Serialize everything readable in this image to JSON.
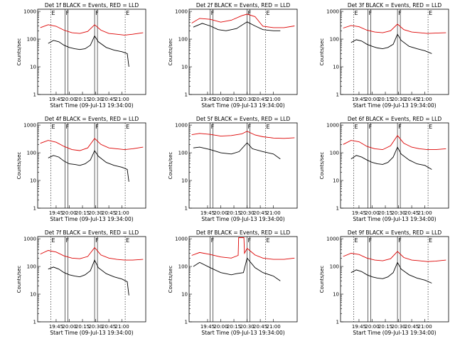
{
  "colors": {
    "events": "#000000",
    "lld": "#dd0000",
    "axes": "#000000",
    "background": "#ffffff"
  },
  "axis": {
    "ylabel": "Counts/sec",
    "xlabel": "Start Time (09-Jul-13 19:34:00)",
    "y_ticks": [
      "1",
      "10",
      "100",
      "1000"
    ],
    "y_range": [
      1,
      1200
    ],
    "y_scale": "log",
    "x_range_min": [
      19.4,
      21.45
    ],
    "x_ticks_standard": [
      "19:45",
      "20:00",
      "20:15",
      "20:30",
      "20:45",
      "21:00"
    ],
    "x_ticks_shifted": [
      "19:45",
      "20:00",
      "20:15",
      "20:30",
      "20:45",
      "21:00"
    ],
    "x_tick_hours_standard": [
      19.75,
      20.0,
      20.25,
      20.5,
      20.75,
      21.0
    ],
    "x_tick_hours_shifted": [
      19.75,
      20.0,
      20.25,
      20.5,
      20.75,
      21.0
    ]
  },
  "chart_data": [
    {
      "title": "Det 1f BLACK = Events, RED = LLD",
      "type": "line",
      "markers": [
        {
          "hour": 19.65,
          "label": "E"
        },
        {
          "hour": 19.92,
          "label": "F"
        },
        {
          "hour": 20.48,
          "label": "F"
        },
        {
          "hour": 21.06,
          "label": "E"
        }
      ],
      "series": [
        {
          "name": "Events",
          "x": [
            19.6,
            19.7,
            19.8,
            19.9,
            20.0,
            20.1,
            20.2,
            20.3,
            20.4,
            20.48,
            20.55,
            20.7,
            20.85,
            21.0,
            21.1,
            21.13
          ],
          "y": [
            70,
            90,
            80,
            60,
            50,
            45,
            42,
            45,
            60,
            130,
            80,
            50,
            40,
            35,
            30,
            10
          ]
        },
        {
          "name": "LLD",
          "x": [
            19.45,
            19.6,
            19.75,
            19.9,
            20.05,
            20.2,
            20.35,
            20.48,
            20.6,
            20.75,
            20.9,
            21.05,
            21.2,
            21.4
          ],
          "y": [
            260,
            330,
            290,
            210,
            170,
            160,
            190,
            330,
            210,
            160,
            150,
            140,
            150,
            170
          ]
        }
      ]
    },
    {
      "title": "Det 2f BLACK = Events, RED = LLD",
      "type": "line",
      "markers": [
        {
          "hour": 19.8,
          "label": "F"
        },
        {
          "hour": 20.5,
          "label": "F"
        },
        {
          "hour": 20.85,
          "label": "E"
        }
      ],
      "series": [
        {
          "name": "Events",
          "x": [
            19.48,
            19.65,
            19.8,
            19.95,
            20.1,
            20.3,
            20.5,
            20.65,
            20.8,
            21.0,
            21.13
          ],
          "y": [
            270,
            370,
            300,
            220,
            200,
            240,
            420,
            300,
            220,
            200,
            200
          ]
        },
        {
          "name": "LLD",
          "x": [
            19.45,
            19.6,
            19.8,
            20.0,
            20.2,
            20.4,
            20.5,
            20.65,
            20.8,
            21.0,
            21.2,
            21.4
          ],
          "y": [
            380,
            560,
            520,
            410,
            480,
            700,
            800,
            650,
            290,
            260,
            260,
            300
          ]
        }
      ]
    },
    {
      "title": "Det 3f BLACK = Events, RED = LLD",
      "type": "line",
      "markers": [
        {
          "hour": 19.65,
          "label": "E"
        },
        {
          "hour": 19.92,
          "label": "F"
        },
        {
          "hour": 20.48,
          "label": "F"
        },
        {
          "hour": 21.06,
          "label": "E"
        }
      ],
      "series": [
        {
          "name": "Events",
          "x": [
            19.6,
            19.7,
            19.8,
            19.9,
            20.0,
            20.1,
            20.2,
            20.3,
            20.4,
            20.48,
            20.55,
            20.7,
            20.85,
            21.0,
            21.13
          ],
          "y": [
            75,
            95,
            85,
            65,
            55,
            48,
            45,
            50,
            65,
            150,
            90,
            55,
            45,
            38,
            30
          ]
        },
        {
          "name": "LLD",
          "x": [
            19.45,
            19.6,
            19.75,
            19.9,
            20.05,
            20.2,
            20.35,
            20.48,
            20.6,
            20.75,
            20.9,
            21.05,
            21.2,
            21.4
          ],
          "y": [
            250,
            310,
            280,
            210,
            180,
            170,
            200,
            350,
            220,
            180,
            170,
            160,
            165,
            170
          ]
        }
      ]
    },
    {
      "title": "Det 4f BLACK = Events, RED = LLD",
      "type": "line",
      "markers": [
        {
          "hour": 19.65,
          "label": "E"
        },
        {
          "hour": 19.92,
          "label": "F"
        },
        {
          "hour": 20.48,
          "label": "F"
        },
        {
          "hour": 21.06,
          "label": "E"
        }
      ],
      "series": [
        {
          "name": "Events",
          "x": [
            19.6,
            19.7,
            19.8,
            19.9,
            20.0,
            20.1,
            20.2,
            20.3,
            20.4,
            20.48,
            20.55,
            20.7,
            20.85,
            21.0,
            21.1,
            21.13
          ],
          "y": [
            65,
            80,
            70,
            50,
            40,
            38,
            35,
            40,
            55,
            120,
            75,
            45,
            35,
            30,
            25,
            9
          ]
        },
        {
          "name": "LLD",
          "x": [
            19.45,
            19.6,
            19.75,
            19.9,
            20.05,
            20.2,
            20.35,
            20.48,
            20.6,
            20.75,
            20.9,
            21.05,
            21.2,
            21.4
          ],
          "y": [
            220,
            280,
            240,
            170,
            130,
            120,
            150,
            330,
            200,
            150,
            140,
            130,
            140,
            160
          ]
        }
      ]
    },
    {
      "title": "Det 5f BLACK = Events, RED = LLD",
      "type": "line",
      "markers": [
        {
          "hour": 19.8,
          "label": "F"
        },
        {
          "hour": 20.5,
          "label": "F"
        },
        {
          "hour": 20.85,
          "label": "E"
        }
      ],
      "series": [
        {
          "name": "Events",
          "x": [
            19.48,
            19.6,
            19.8,
            20.0,
            20.2,
            20.35,
            20.5,
            20.6,
            20.8,
            21.0,
            21.13
          ],
          "y": [
            150,
            160,
            130,
            100,
            90,
            110,
            230,
            140,
            110,
            90,
            60
          ]
        },
        {
          "name": "LLD",
          "x": [
            19.45,
            19.6,
            19.8,
            20.0,
            20.2,
            20.4,
            20.5,
            20.65,
            20.8,
            21.0,
            21.2,
            21.4
          ],
          "y": [
            450,
            500,
            460,
            400,
            420,
            480,
            600,
            440,
            380,
            340,
            330,
            350
          ]
        }
      ]
    },
    {
      "title": "Det 6f BLACK = Events, RED = LLD",
      "type": "line",
      "markers": [
        {
          "hour": 19.65,
          "label": "E"
        },
        {
          "hour": 19.92,
          "label": "F"
        },
        {
          "hour": 20.48,
          "label": "F"
        },
        {
          "hour": 21.06,
          "label": "E"
        }
      ],
      "series": [
        {
          "name": "Events",
          "x": [
            19.6,
            19.7,
            19.8,
            19.9,
            20.0,
            20.1,
            20.2,
            20.3,
            20.4,
            20.48,
            20.55,
            20.7,
            20.85,
            21.0,
            21.13
          ],
          "y": [
            60,
            80,
            70,
            55,
            45,
            40,
            38,
            45,
            70,
            160,
            90,
            55,
            40,
            35,
            25
          ]
        },
        {
          "name": "LLD",
          "x": [
            19.45,
            19.6,
            19.75,
            19.9,
            20.05,
            20.2,
            20.35,
            20.48,
            20.6,
            20.75,
            20.9,
            21.05,
            21.2,
            21.4
          ],
          "y": [
            200,
            280,
            250,
            170,
            140,
            130,
            180,
            420,
            220,
            160,
            140,
            130,
            130,
            140
          ]
        }
      ]
    },
    {
      "title": "Det 7f BLACK = Events, RED = LLD",
      "type": "line",
      "markers": [
        {
          "hour": 19.65,
          "label": "E"
        },
        {
          "hour": 19.92,
          "label": "F"
        },
        {
          "hour": 20.48,
          "label": "F"
        },
        {
          "hour": 21.06,
          "label": "E"
        }
      ],
      "series": [
        {
          "name": "Events",
          "x": [
            19.6,
            19.7,
            19.8,
            19.9,
            20.0,
            20.1,
            20.2,
            20.3,
            20.4,
            20.48,
            20.55,
            20.7,
            20.85,
            21.0,
            21.1,
            21.13
          ],
          "y": [
            80,
            95,
            80,
            60,
            50,
            45,
            42,
            50,
            70,
            170,
            90,
            55,
            42,
            35,
            28,
            9
          ]
        },
        {
          "name": "LLD",
          "x": [
            19.45,
            19.6,
            19.75,
            19.9,
            20.05,
            20.2,
            20.35,
            20.48,
            20.6,
            20.75,
            20.9,
            21.05,
            21.2,
            21.4
          ],
          "y": [
            280,
            380,
            330,
            240,
            200,
            190,
            230,
            480,
            260,
            200,
            180,
            170,
            170,
            180
          ]
        }
      ]
    },
    {
      "title": "Det 8f BLACK = Events, RED = LLD",
      "type": "line",
      "markers": [
        {
          "hour": 19.8,
          "label": "F"
        },
        {
          "hour": 20.5,
          "label": "F"
        },
        {
          "hour": 20.85,
          "label": "E"
        }
      ],
      "series": [
        {
          "name": "Events",
          "x": [
            19.48,
            19.6,
            19.8,
            20.0,
            20.2,
            20.3,
            20.43,
            20.5,
            20.65,
            20.8,
            21.0,
            21.13
          ],
          "y": [
            100,
            140,
            90,
            60,
            50,
            55,
            60,
            200,
            90,
            60,
            45,
            30
          ]
        },
        {
          "name": "LLD",
          "x": [
            19.45,
            19.6,
            19.8,
            20.0,
            20.2,
            20.33,
            20.34,
            20.44,
            20.45,
            20.5,
            20.65,
            20.8,
            21.0,
            21.2,
            21.4
          ],
          "y": [
            250,
            320,
            270,
            220,
            200,
            250,
            1100,
            1100,
            300,
            450,
            260,
            200,
            180,
            180,
            200
          ]
        }
      ]
    },
    {
      "title": "Det 9f BLACK = Events, RED = LLD",
      "type": "line",
      "markers": [
        {
          "hour": 19.65,
          "label": "E"
        },
        {
          "hour": 19.92,
          "label": "F"
        },
        {
          "hour": 20.48,
          "label": "F"
        },
        {
          "hour": 21.06,
          "label": "E"
        }
      ],
      "series": [
        {
          "name": "Events",
          "x": [
            19.6,
            19.7,
            19.8,
            19.9,
            20.0,
            20.1,
            20.2,
            20.3,
            20.4,
            20.48,
            20.55,
            20.7,
            20.85,
            21.0,
            21.13
          ],
          "y": [
            60,
            75,
            65,
            50,
            42,
            38,
            36,
            42,
            60,
            140,
            80,
            50,
            38,
            32,
            25
          ]
        },
        {
          "name": "LLD",
          "x": [
            19.45,
            19.6,
            19.75,
            19.9,
            20.05,
            20.2,
            20.35,
            20.48,
            20.6,
            20.75,
            20.9,
            21.05,
            21.2,
            21.4
          ],
          "y": [
            230,
            300,
            270,
            200,
            170,
            160,
            190,
            350,
            210,
            170,
            160,
            150,
            155,
            170
          ]
        }
      ]
    }
  ]
}
